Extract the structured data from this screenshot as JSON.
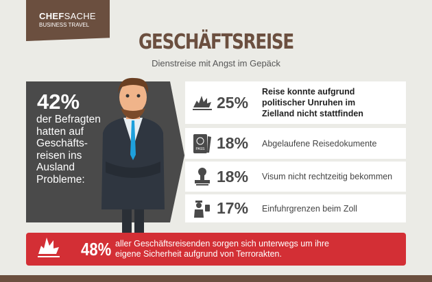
{
  "logo": {
    "bold": "CHEF",
    "light": "SACHE",
    "sub": "BUSINESS TRAVEL"
  },
  "header": {
    "title": "GESCHÄFTSREISE",
    "subtitle": "Dienstreise mit Angst im Gepäck"
  },
  "panel": {
    "percent": "42%",
    "text": "der Befragten hatten auf Geschäfts-reisen ins Ausland Probleme:"
  },
  "rows": [
    {
      "icon": "explosion-icon",
      "percent": "25%",
      "label": "Reise konnte aufgrund politischer Unruhen im Zielland nicht stattfinden"
    },
    {
      "icon": "passport-icon",
      "percent": "18%",
      "label": "Abgelaufene Reisedokumente",
      "icon_text": "PASS"
    },
    {
      "icon": "stamp-icon",
      "percent": "18%",
      "label": "Visum nicht rechtzeitig bekommen"
    },
    {
      "icon": "customs-officer-icon",
      "percent": "17%",
      "label": "Einfuhrgrenzen beim Zoll"
    }
  ],
  "alert": {
    "icon": "explosion-icon",
    "percent": "48%",
    "line1": "aller Geschäftsreisenden sorgen sich unterwegs um ihre",
    "line2": "eigene Sicherheit aufgrund von Terrorakten."
  },
  "colors": {
    "brown": "#6b4f3f",
    "dark": "#4a4a4a",
    "red": "#d32f35",
    "background": "#ebebe6",
    "tie": "#1ea0dc"
  }
}
